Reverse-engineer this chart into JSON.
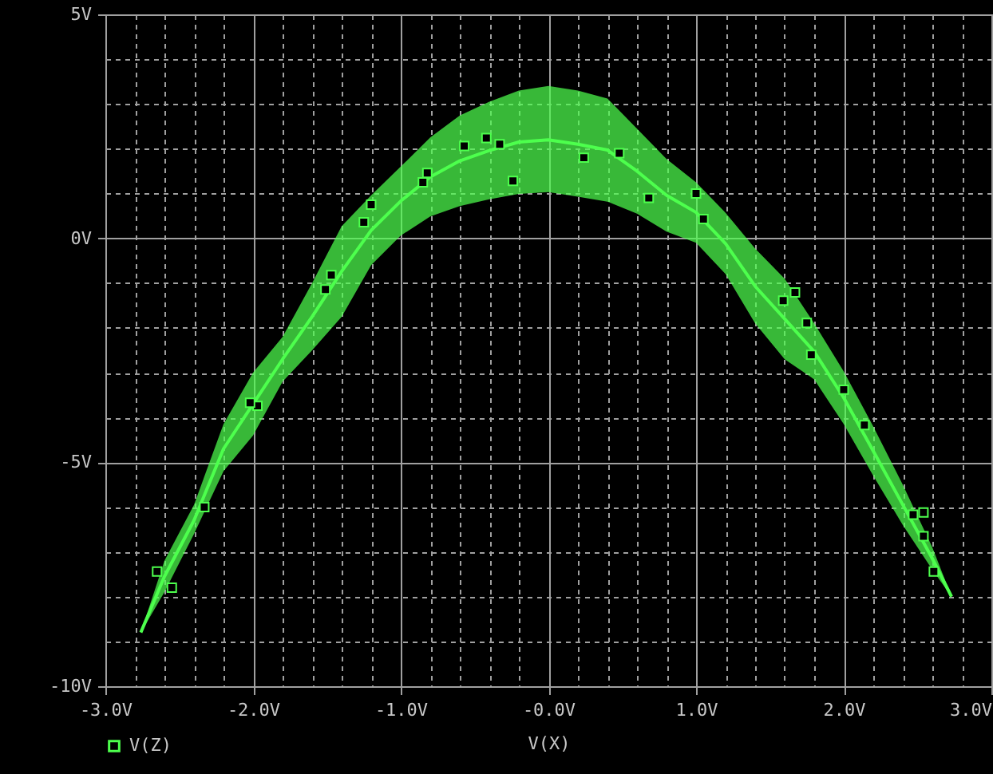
{
  "chart_data": {
    "type": "line",
    "xlabel": "V(X)",
    "legend": "bottom left",
    "grid": true,
    "xlim": [
      -3,
      3
    ],
    "ylim": [
      -10,
      5
    ],
    "xticks": [
      {
        "value": -3,
        "label": "-3.0V"
      },
      {
        "value": -2.8,
        "label": null
      },
      {
        "value": -2.6,
        "label": null
      },
      {
        "value": -2.4,
        "label": null
      },
      {
        "value": -2.2,
        "label": null
      },
      {
        "value": -2,
        "label": "-2.0V"
      },
      {
        "value": -1.8,
        "label": null
      },
      {
        "value": -1.6,
        "label": null
      },
      {
        "value": -1.4,
        "label": null
      },
      {
        "value": -1.2,
        "label": null
      },
      {
        "value": -1,
        "label": "-1.0V"
      },
      {
        "value": -0.8,
        "label": null
      },
      {
        "value": -0.6,
        "label": null
      },
      {
        "value": -0.4,
        "label": null
      },
      {
        "value": -0.2,
        "label": null
      },
      {
        "value": 0,
        "label": "-0.0V"
      },
      {
        "value": 0.2,
        "label": null
      },
      {
        "value": 0.4,
        "label": null
      },
      {
        "value": 0.6,
        "label": null
      },
      {
        "value": 0.8,
        "label": null
      },
      {
        "value": 1,
        "label": "1.0V"
      },
      {
        "value": 1.2,
        "label": null
      },
      {
        "value": 1.4,
        "label": null
      },
      {
        "value": 1.6,
        "label": null
      },
      {
        "value": 1.8,
        "label": null
      },
      {
        "value": 2,
        "label": "2.0V"
      },
      {
        "value": 2.2,
        "label": null
      },
      {
        "value": 2.4,
        "label": null
      },
      {
        "value": 2.6,
        "label": null
      },
      {
        "value": 2.8,
        "label": null
      },
      {
        "value": 3,
        "label": "3.0V"
      }
    ],
    "yticks": [
      {
        "value": -10,
        "label": "-10V"
      },
      {
        "value": -9,
        "label": null
      },
      {
        "value": -8,
        "label": null
      },
      {
        "value": -7,
        "label": null
      },
      {
        "value": -6,
        "label": null
      },
      {
        "value": -5,
        "label": "-5V"
      },
      {
        "value": -4,
        "label": null
      },
      {
        "value": -3,
        "label": null
      },
      {
        "value": -2,
        "label": null
      },
      {
        "value": -1,
        "label": null
      },
      {
        "value": 0,
        "label": "0V"
      },
      {
        "value": 1,
        "label": null
      },
      {
        "value": 2,
        "label": null
      },
      {
        "value": 3,
        "label": null
      },
      {
        "value": 4,
        "label": null
      },
      {
        "value": 5,
        "label": "5V"
      }
    ],
    "series": [
      {
        "name": "V(Z)",
        "color": "#4dff4d",
        "x": [
          -2.76,
          -2.6,
          -2.4,
          -2.2,
          -2.0,
          -1.8,
          -1.6,
          -1.4,
          -1.2,
          -1.0,
          -0.8,
          -0.6,
          -0.4,
          -0.2,
          0,
          0.2,
          0.4,
          0.6,
          0.8,
          1.0,
          1.2,
          1.4,
          1.6,
          1.8,
          2.0,
          2.2,
          2.4,
          2.6,
          2.73
        ],
        "values": [
          -8.8,
          -7.55,
          -6.3,
          -4.7,
          -3.7,
          -2.7,
          -1.75,
          -0.74,
          0.18,
          0.83,
          1.37,
          1.73,
          1.96,
          2.15,
          2.2,
          2.1,
          1.97,
          1.5,
          0.96,
          0.58,
          -0.12,
          -1.07,
          -1.8,
          -2.53,
          -3.56,
          -4.75,
          -5.95,
          -7.15,
          -8
        ],
        "lower": [
          -8.8,
          -7.9,
          -6.6,
          -5.2,
          -4.4,
          -3.2,
          -2.5,
          -1.75,
          -0.6,
          0.06,
          0.49,
          0.72,
          0.87,
          0.99,
          1.03,
          0.93,
          0.82,
          0.55,
          0.15,
          -0.1,
          -0.8,
          -1.9,
          -2.7,
          -3.15,
          -4.15,
          -5.3,
          -6.4,
          -7.4,
          -8
        ],
        "upper": [
          -8.8,
          -7.2,
          -5.95,
          -4.15,
          -3.0,
          -2.2,
          -1.0,
          0.27,
          0.96,
          1.6,
          2.25,
          2.74,
          3.05,
          3.3,
          3.4,
          3.3,
          3.12,
          2.45,
          1.77,
          1.25,
          0.57,
          -0.23,
          -0.9,
          -1.9,
          -2.97,
          -4.2,
          -5.5,
          -6.9,
          -8
        ]
      },
      {
        "type": "scatter",
        "marker": "square",
        "color": "#000000",
        "x": [
          -0.57,
          -0.42,
          -0.33,
          -0.82,
          -0.85,
          -1.2,
          -1.25,
          -1.47,
          -1.51,
          -0.24,
          0.24,
          0.48,
          0.68,
          1.0,
          1.05,
          1.59,
          1.67,
          1.75,
          1.78,
          2.0,
          2.14,
          2.47,
          2.54,
          2.54,
          2.61,
          -1.97,
          -2.02,
          -2.33,
          -2.65,
          -2.55
        ],
        "values": [
          2.06,
          2.24,
          2.1,
          1.46,
          1.25,
          0.75,
          0.36,
          -0.82,
          -1.14,
          1.28,
          1.8,
          1.9,
          0.9,
          1.0,
          0.43,
          -1.39,
          -1.21,
          -1.89,
          -2.6,
          -3.38,
          -4.17,
          -6.17,
          -6.12,
          -6.65,
          -7.44,
          -3.74,
          -3.67,
          -6.0,
          -7.44,
          -7.8
        ]
      }
    ]
  }
}
